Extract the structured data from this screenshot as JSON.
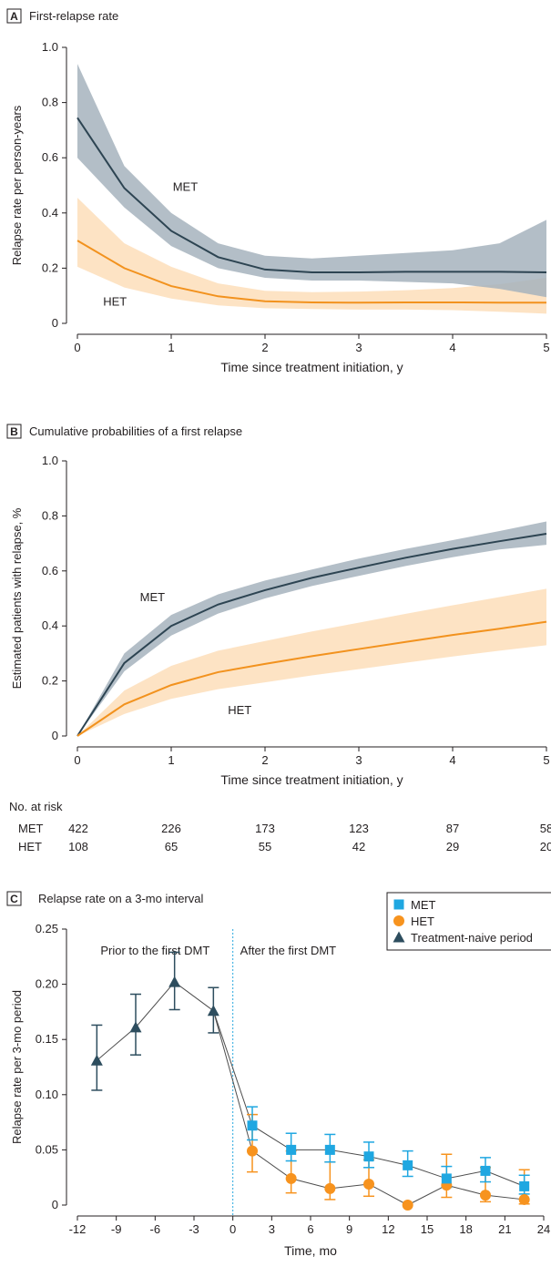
{
  "colors": {
    "met_line": "#2d4452",
    "met_band": "#a6b3bd",
    "het_line": "#f2921e",
    "het_band": "#fcd9b0",
    "c_met": "#1fa7e1",
    "c_het": "#f7931e",
    "c_naive": "#2d4d5e",
    "c_header_text": "#29a9df",
    "c_divider": "#29a9df"
  },
  "chart_data": [
    {
      "type": "line",
      "panel": "A",
      "title": "First-relapse rate",
      "xlabel": "Time since treatment initiation, y",
      "ylabel": "Relapse rate per person-years",
      "xlim": [
        0,
        5
      ],
      "ylim": [
        0,
        1.0
      ],
      "xticks": [
        "0",
        "1",
        "2",
        "3",
        "4",
        "5"
      ],
      "yticks": [
        "0",
        "0.2",
        "0.4",
        "0.6",
        "0.8",
        "1.0"
      ],
      "x": [
        0,
        0.5,
        1,
        1.5,
        2,
        2.5,
        3,
        3.5,
        4,
        4.5,
        5
      ],
      "series": [
        {
          "name": "MET",
          "values": [
            0.745,
            0.49,
            0.335,
            0.24,
            0.195,
            0.185,
            0.185,
            0.187,
            0.187,
            0.187,
            0.185
          ],
          "lower": [
            0.6,
            0.42,
            0.28,
            0.2,
            0.165,
            0.155,
            0.155,
            0.15,
            0.145,
            0.125,
            0.095
          ],
          "upper": [
            0.94,
            0.57,
            0.4,
            0.29,
            0.245,
            0.235,
            0.245,
            0.255,
            0.265,
            0.29,
            0.375
          ]
        },
        {
          "name": "HET",
          "values": [
            0.3,
            0.2,
            0.135,
            0.098,
            0.08,
            0.076,
            0.075,
            0.076,
            0.076,
            0.075,
            0.075
          ],
          "lower": [
            0.205,
            0.13,
            0.09,
            0.065,
            0.055,
            0.052,
            0.05,
            0.05,
            0.048,
            0.042,
            0.035
          ],
          "upper": [
            0.455,
            0.29,
            0.205,
            0.145,
            0.118,
            0.113,
            0.115,
            0.12,
            0.128,
            0.142,
            0.165
          ]
        }
      ],
      "annotations": [
        {
          "text": "MET",
          "x": 1.15,
          "y": 0.48
        },
        {
          "text": "HET",
          "x": 0.4,
          "y": 0.065
        }
      ]
    },
    {
      "type": "line",
      "panel": "B",
      "title": "Cumulative probabilities of a first relapse",
      "xlabel": "Time since treatment initiation, y",
      "ylabel": "Estimated patients with relapse, %",
      "xlim": [
        0,
        5
      ],
      "ylim": [
        0,
        1.0
      ],
      "xticks": [
        "0",
        "1",
        "2",
        "3",
        "4",
        "5"
      ],
      "yticks": [
        "0",
        "0.2",
        "0.4",
        "0.6",
        "0.8",
        "1.0"
      ],
      "x": [
        0,
        0.5,
        1,
        1.5,
        2,
        2.5,
        3,
        3.5,
        4,
        4.5,
        5
      ],
      "series": [
        {
          "name": "MET",
          "values": [
            0,
            0.265,
            0.4,
            0.478,
            0.53,
            0.575,
            0.612,
            0.648,
            0.68,
            0.708,
            0.735
          ],
          "lower": [
            0,
            0.235,
            0.365,
            0.445,
            0.5,
            0.545,
            0.582,
            0.618,
            0.65,
            0.678,
            0.695
          ],
          "upper": [
            0,
            0.3,
            0.44,
            0.515,
            0.565,
            0.605,
            0.645,
            0.68,
            0.712,
            0.745,
            0.78
          ]
        },
        {
          "name": "HET",
          "values": [
            0,
            0.115,
            0.185,
            0.232,
            0.262,
            0.29,
            0.316,
            0.342,
            0.367,
            0.39,
            0.415
          ],
          "lower": [
            0,
            0.08,
            0.135,
            0.17,
            0.195,
            0.22,
            0.243,
            0.266,
            0.289,
            0.31,
            0.33
          ],
          "upper": [
            0,
            0.165,
            0.255,
            0.31,
            0.345,
            0.38,
            0.412,
            0.444,
            0.475,
            0.505,
            0.535
          ]
        }
      ],
      "annotations": [
        {
          "text": "MET",
          "x": 0.8,
          "y": 0.49
        },
        {
          "text": "HET",
          "x": 1.73,
          "y": 0.08
        }
      ],
      "risk_table": {
        "label": "No. at risk",
        "rows": [
          {
            "name": "MET",
            "values": [
              "422",
              "226",
              "173",
              "123",
              "87",
              "58"
            ]
          },
          {
            "name": "HET",
            "values": [
              "108",
              "65",
              "55",
              "42",
              "29",
              "20"
            ]
          }
        ]
      }
    },
    {
      "type": "scatter",
      "panel": "C",
      "title": "Relapse rate on a 3-mo interval",
      "xlabel": "Time, mo",
      "ylabel": "Relapse rate per 3-mo period",
      "xlim": [
        -12,
        24
      ],
      "ylim": [
        0,
        0.25
      ],
      "xticks": [
        "-12",
        "-9",
        "-6",
        "-3",
        "0",
        "3",
        "6",
        "9",
        "12",
        "15",
        "18",
        "21",
        "24"
      ],
      "yticks": [
        "0",
        "0.05",
        "0.10",
        "0.15",
        "0.20",
        "0.25"
      ],
      "legend": {
        "position": "top-right",
        "entries": [
          "MET",
          "HET",
          "Treatment-naive period"
        ]
      },
      "headers": {
        "left": "Prior to the first DMT",
        "right": "After the first DMT"
      },
      "series": [
        {
          "name": "Treatment-naive period",
          "marker": "triangle",
          "x": [
            -10.5,
            -7.5,
            -4.5,
            -1.5
          ],
          "y": [
            0.131,
            0.161,
            0.202,
            0.176
          ],
          "err_low": [
            0.104,
            0.136,
            0.177,
            0.156
          ],
          "err_high": [
            0.163,
            0.191,
            0.229,
            0.197
          ]
        },
        {
          "name": "MET",
          "marker": "square",
          "x": [
            1.5,
            4.5,
            7.5,
            10.5,
            13.5,
            16.5,
            19.5,
            22.5
          ],
          "y": [
            0.072,
            0.05,
            0.05,
            0.044,
            0.036,
            0.024,
            0.031,
            0.017
          ],
          "err_low": [
            0.059,
            0.04,
            0.039,
            0.034,
            0.026,
            0.016,
            0.021,
            0.01
          ],
          "err_high": [
            0.089,
            0.065,
            0.064,
            0.057,
            0.049,
            0.035,
            0.043,
            0.027
          ]
        },
        {
          "name": "HET",
          "marker": "circle",
          "x": [
            1.5,
            4.5,
            7.5,
            10.5,
            13.5,
            16.5,
            19.5,
            22.5
          ],
          "y": [
            0.049,
            0.024,
            0.015,
            0.019,
            0.0,
            0.018,
            0.009,
            0.005
          ],
          "err_low": [
            0.03,
            0.011,
            0.005,
            0.008,
            0.0,
            0.007,
            0.003,
            0.001
          ],
          "err_high": [
            0.082,
            0.049,
            0.039,
            0.041,
            0.0,
            0.046,
            0.034,
            0.032
          ]
        }
      ],
      "connect": [
        {
          "from": "Treatment-naive period",
          "to": "MET"
        },
        {
          "from": "Treatment-naive period",
          "to": "HET"
        }
      ]
    }
  ]
}
